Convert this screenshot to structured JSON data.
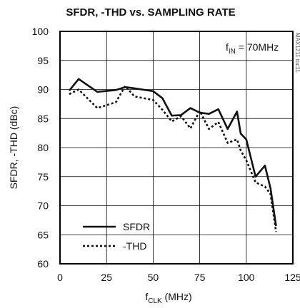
{
  "chart_data": {
    "type": "line",
    "title": "SFDR, -THD vs. SAMPLING RATE",
    "xlabel": {
      "main": "f",
      "sub": "CLK",
      "unit": " (MHz)"
    },
    "ylabel": "SFDR, -THD (dBc)",
    "xlim": [
      0,
      125
    ],
    "ylim": [
      60,
      100
    ],
    "xticks": [
      0,
      25,
      50,
      75,
      100,
      125
    ],
    "yticks": [
      60,
      65,
      70,
      75,
      80,
      85,
      90,
      95,
      100
    ],
    "grid": true,
    "annotation": {
      "main": "f",
      "sub": "IN",
      "rest": " = 70MHz"
    },
    "side_code": "MAX1211 toc11",
    "legend_position": "bottom-left",
    "series": [
      {
        "name": "SFDR",
        "style": "solid",
        "x": [
          5,
          10,
          20,
          30,
          35,
          40,
          50,
          55,
          60,
          65,
          70,
          75,
          80,
          85,
          90,
          95,
          97,
          100,
          105,
          110,
          113,
          116
        ],
        "y": [
          89.8,
          91.8,
          89.6,
          89.9,
          90.4,
          90.2,
          89.7,
          88.5,
          85.5,
          85.6,
          86.8,
          86.0,
          85.8,
          86.6,
          83.2,
          86.2,
          82.4,
          81.4,
          75.0,
          76.9,
          73.0,
          66.5
        ]
      },
      {
        "name": "-THD",
        "style": "dotted",
        "x": [
          5,
          10,
          20,
          30,
          35,
          40,
          50,
          55,
          60,
          65,
          70,
          75,
          80,
          85,
          90,
          95,
          97,
          100,
          105,
          110,
          113,
          116
        ],
        "y": [
          89.2,
          90.0,
          86.8,
          87.8,
          90.6,
          88.8,
          88.2,
          86.5,
          84.5,
          85.4,
          83.3,
          86.3,
          83.2,
          84.4,
          80.8,
          81.4,
          79.5,
          77.8,
          74.0,
          73.3,
          72.0,
          65.5
        ]
      }
    ]
  },
  "colors": {
    "axis": "#000000",
    "grid": "#000000",
    "line": "#111111"
  }
}
